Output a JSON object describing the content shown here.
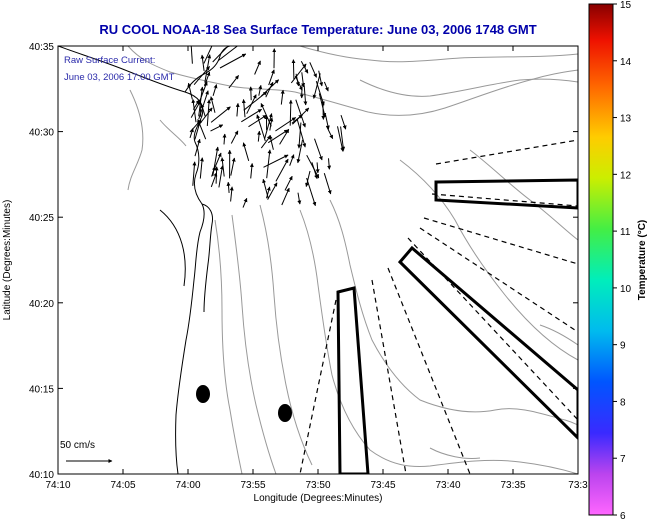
{
  "title": "RU COOL  NOAA-18  Sea Surface Temperature:  June 03, 2006 1748 GMT",
  "overlay": {
    "line1": "Raw Surface Current:",
    "line2": "June 03, 2006 17:00 GMT"
  },
  "axes": {
    "xlabel": "Longitude (Degrees:Minutes)",
    "ylabel": "Latitude (Degrees:Minutes)",
    "x_ticks": [
      "74:10",
      "74:05",
      "74:00",
      "73:55",
      "73:50",
      "73:45",
      "73:40",
      "73:35",
      "73:3"
    ],
    "y_ticks": [
      "40:35",
      "40:30",
      "40:25",
      "40:20",
      "40:15",
      "40:10"
    ]
  },
  "scale_label": "50 cm/s",
  "colorbar": {
    "label": "Temperature (°C)",
    "ticks": [
      "15",
      "14",
      "13",
      "12",
      "11",
      "10",
      "9",
      "8",
      "7",
      "6"
    ],
    "min": 6,
    "max": 15
  },
  "colors": {
    "title": "#0000aa",
    "overlay_text": "#2a2aaa",
    "contour": "#999999",
    "coast": "#000000"
  }
}
